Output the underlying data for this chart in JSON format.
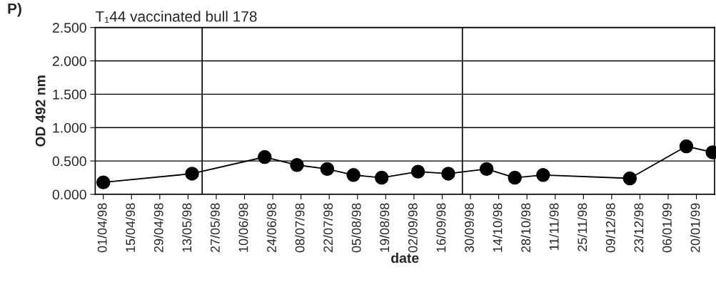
{
  "chart_data": {
    "type": "line",
    "title": "T₁44 vaccinated bull 178",
    "xlabel": "date",
    "ylabel": "OD 492 nm",
    "annotations": [
      "P)"
    ],
    "x": [
      "1998-04-01",
      "1998-05-15",
      "1998-06-20",
      "1998-07-06",
      "1998-07-21",
      "1998-08-03",
      "1998-08-17",
      "1998-09-04",
      "1998-09-19",
      "1998-10-08",
      "1998-10-22",
      "1998-11-05",
      "1998-12-18",
      "1999-01-15",
      "1999-01-28"
    ],
    "series": [
      {
        "color": "#000000",
        "values": [
          0.18,
          0.31,
          0.56,
          0.44,
          0.38,
          0.29,
          0.25,
          0.34,
          0.31,
          0.38,
          0.25,
          0.29,
          0.24,
          0.72,
          0.63
        ],
        "errors": [
          null,
          null,
          null,
          null,
          0.05,
          null,
          null,
          null,
          null,
          null,
          null,
          null,
          null,
          null,
          null
        ]
      }
    ],
    "marker": "circle",
    "line_style": "solid",
    "grid": "y",
    "legend": false,
    "xlim": [
      "1998-03-28",
      "1999-01-29"
    ],
    "xticks": [
      {
        "value": "1998-04-01",
        "label": "01/04/98"
      },
      {
        "value": "1998-04-15",
        "label": "15/04/98"
      },
      {
        "value": "1998-04-29",
        "label": "29/04/98"
      },
      {
        "value": "1998-05-13",
        "label": "13/05/98"
      },
      {
        "value": "1998-05-27",
        "label": "27/05/98"
      },
      {
        "value": "1998-06-10",
        "label": "10/06/98"
      },
      {
        "value": "1998-06-24",
        "label": "24/06/98"
      },
      {
        "value": "1998-07-08",
        "label": "08/07/98"
      },
      {
        "value": "1998-07-22",
        "label": "22/07/98"
      },
      {
        "value": "1998-08-05",
        "label": "05/08/98"
      },
      {
        "value": "1998-08-19",
        "label": "19/08/98"
      },
      {
        "value": "1998-09-02",
        "label": "02/09/98"
      },
      {
        "value": "1998-09-16",
        "label": "16/09/98"
      },
      {
        "value": "1998-09-30",
        "label": "30/09/98"
      },
      {
        "value": "1998-10-14",
        "label": "14/10/98"
      },
      {
        "value": "1998-10-28",
        "label": "28/10/98"
      },
      {
        "value": "1998-11-11",
        "label": "11/11/98"
      },
      {
        "value": "1998-11-25",
        "label": "25/11/98"
      },
      {
        "value": "1998-12-09",
        "label": "09/12/98"
      },
      {
        "value": "1998-12-23",
        "label": "23/12/98"
      },
      {
        "value": "1999-01-06",
        "label": "06/01/99"
      },
      {
        "value": "1999-01-20",
        "label": "20/01/99"
      }
    ],
    "ylim": [
      0,
      2.5
    ],
    "yticks": [
      {
        "value": 0,
        "label": "0.000"
      },
      {
        "value": 0.5,
        "label": "0.500"
      },
      {
        "value": 1,
        "label": "1.000"
      },
      {
        "value": 1.5,
        "label": "1.500"
      },
      {
        "value": 2,
        "label": "2.000"
      },
      {
        "value": 2.5,
        "label": "2.500"
      }
    ],
    "ref_lines": [
      {
        "axis": "x",
        "value": "1998-05-20",
        "color": "#000000"
      },
      {
        "axis": "x",
        "value": "1998-09-26",
        "color": "#000000"
      }
    ]
  }
}
